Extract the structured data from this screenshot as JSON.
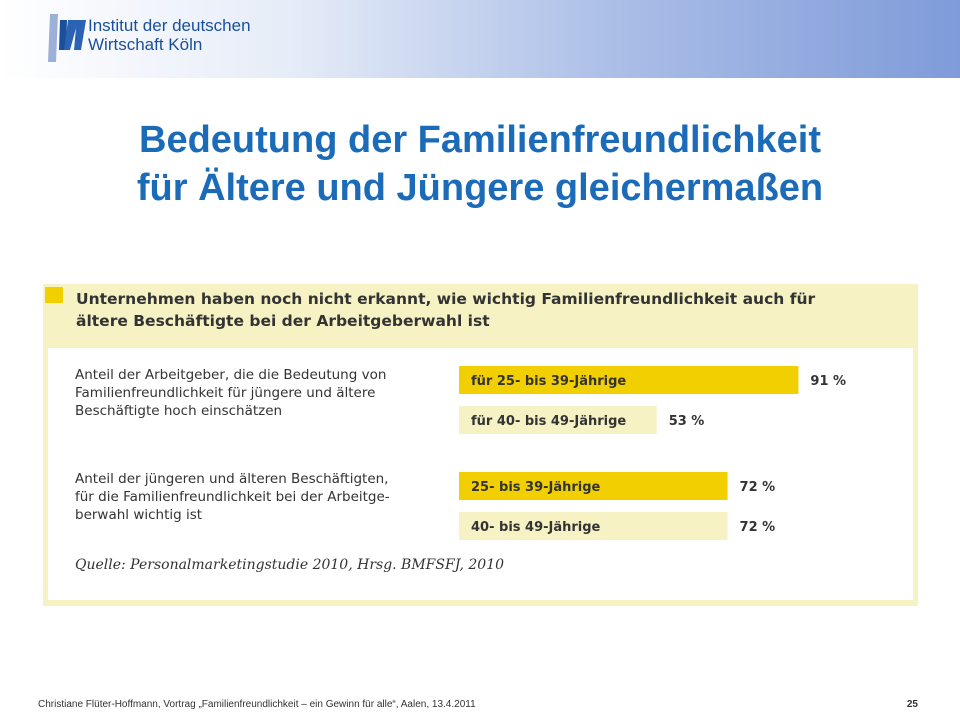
{
  "header": {
    "logo_line1": "Institut der deutschen",
    "logo_line2": "Wirtschaft Köln",
    "colors": {
      "logo_blue": "#1a4f9c",
      "band_end": "#7f9bd9"
    }
  },
  "title": {
    "line1": "Bedeutung der Familienfreundlichkeit",
    "line2": "für Ältere und Jüngere gleichermaßen",
    "color": "#1b6bb8"
  },
  "figure": {
    "heading_line1": "Unternehmen haben noch nicht erkannt, wie wichtig Familienfreundlichkeit auch für",
    "heading_line2": "ältere Beschäftigte bei der Arbeitgeberwahl ist",
    "group1_label_lines": [
      "Anteil der Arbeitgeber, die die Bedeutung von",
      "Familienfreundlichkeit für jüngere und ältere",
      "Beschäftigte hoch einschätzen"
    ],
    "group2_label_lines": [
      "Anteil der jüngeren und älteren Beschäftigten,",
      "für die Familienfreundlichkeit bei der Arbeitge-",
      "berwahl wichtig ist"
    ],
    "source": "Quelle: Personalmarketingstudie 2010, Hrsg. BMFSFJ, 2010"
  },
  "chart_data": {
    "type": "bar",
    "orientation": "horizontal",
    "unit": "%",
    "xlim": [
      0,
      100
    ],
    "groups": [
      {
        "bars": [
          {
            "label": "für 25- bis 39-Jährige",
            "value": 91,
            "color": "#f2cf00"
          },
          {
            "label": "für 40- bis 49-Jährige",
            "value": 53,
            "color": "#f6f2c4"
          }
        ]
      },
      {
        "bars": [
          {
            "label": "25- bis 39-Jährige",
            "value": 72,
            "color": "#f2cf00"
          },
          {
            "label": "40- bis 49-Jährige",
            "value": 72,
            "color": "#f6f2c4"
          }
        ]
      }
    ]
  },
  "footer": {
    "text": "Christiane Flüter-Hoffmann, Vortrag „Familienfreundlichkeit – ein Gewinn für alle“, Aalen, 13.4.2011",
    "page": "25"
  }
}
